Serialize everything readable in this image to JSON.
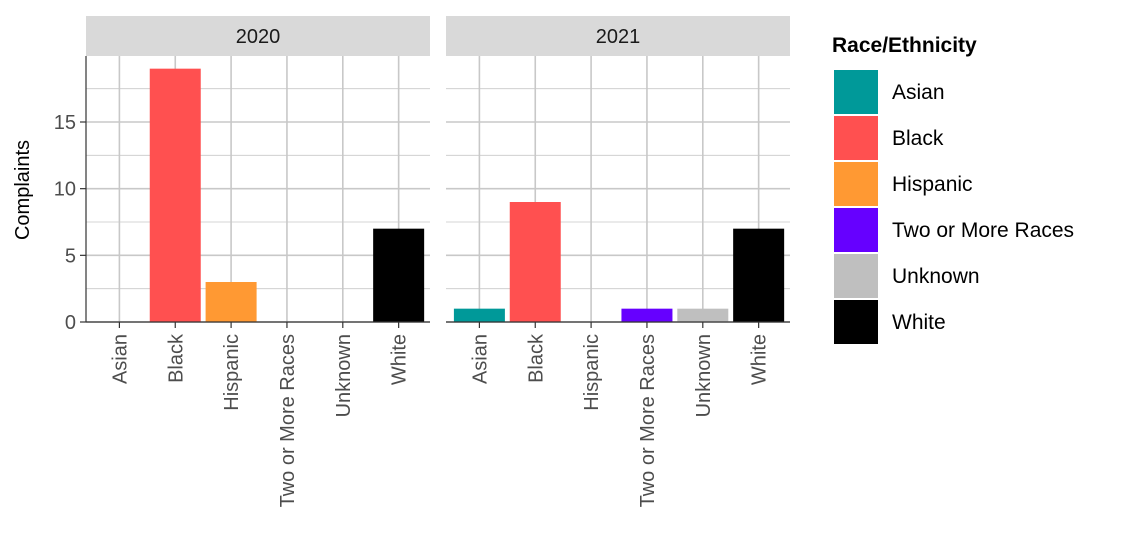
{
  "chart_data": {
    "type": "bar",
    "ylabel": "Complaints",
    "xlabel": "",
    "ylim": [
      0,
      19.95
    ],
    "yticks": [
      0,
      5,
      10,
      15
    ],
    "grid": true,
    "categories": [
      "Asian",
      "Black",
      "Hispanic",
      "Two or More Races",
      "Unknown",
      "White"
    ],
    "facets": [
      {
        "label": "2020",
        "values": [
          0,
          19,
          3,
          0,
          0,
          7
        ]
      },
      {
        "label": "2021",
        "values": [
          1,
          9,
          0,
          1,
          1,
          7
        ]
      }
    ],
    "legend": {
      "title": "Race/Ethnicity",
      "placement": "right",
      "items": [
        {
          "label": "Asian",
          "color": "#009999"
        },
        {
          "label": "Black",
          "color": "#FF5050"
        },
        {
          "label": "Hispanic",
          "color": "#FF9933"
        },
        {
          "label": "Two or More Races",
          "color": "#6600FF"
        },
        {
          "label": "Unknown",
          "color": "#BFBFBF"
        },
        {
          "label": "White",
          "color": "#000000"
        }
      ]
    },
    "colors": {
      "panel_background": "#FFFFFF",
      "strip_background": "#D9D9D9",
      "grid": "#C8C8C8",
      "axis": "#333333"
    }
  }
}
